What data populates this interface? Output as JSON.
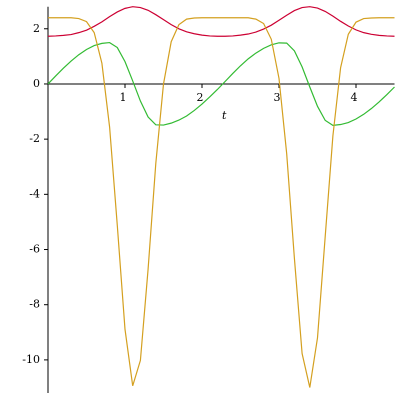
{
  "chart_data": {
    "type": "line",
    "x_label": "t",
    "x": [
      0,
      0.1,
      0.2,
      0.3,
      0.4,
      0.5,
      0.6,
      0.7,
      0.8,
      0.9,
      1.0,
      1.1,
      1.2,
      1.3,
      1.4,
      1.5,
      1.6,
      1.7,
      1.8,
      1.9,
      2.0,
      2.1,
      2.2,
      2.3,
      2.4,
      2.5,
      2.6,
      2.7,
      2.8,
      2.9,
      3.0,
      3.1,
      3.2,
      3.3,
      3.4,
      3.5,
      3.6,
      3.7,
      3.8,
      3.9,
      4.0,
      4.1,
      4.2,
      4.3,
      4.4,
      4.5
    ],
    "series": [
      {
        "color": "#cc0033",
        "values": [
          1.73,
          1.74,
          1.76,
          1.79,
          1.86,
          1.95,
          2.09,
          2.25,
          2.44,
          2.61,
          2.74,
          2.8,
          2.77,
          2.67,
          2.51,
          2.33,
          2.15,
          2.0,
          1.89,
          1.82,
          1.77,
          1.74,
          1.73,
          1.73,
          1.74,
          1.77,
          1.81,
          1.88,
          1.99,
          2.13,
          2.31,
          2.49,
          2.66,
          2.77,
          2.8,
          2.75,
          2.63,
          2.46,
          2.27,
          2.1,
          1.96,
          1.86,
          1.8,
          1.76,
          1.74,
          1.73
        ]
      },
      {
        "color": "#33bb33",
        "values": [
          0,
          0.29,
          0.57,
          0.83,
          1.06,
          1.25,
          1.39,
          1.47,
          1.5,
          1.32,
          0.81,
          0.11,
          -0.62,
          -1.2,
          -1.48,
          -1.49,
          -1.42,
          -1.31,
          -1.16,
          -0.96,
          -0.73,
          -0.47,
          -0.2,
          0.09,
          0.38,
          0.66,
          0.91,
          1.12,
          1.29,
          1.42,
          1.49,
          1.48,
          1.2,
          0.62,
          -0.11,
          -0.81,
          -1.32,
          -1.5,
          -1.47,
          -1.4,
          -1.27,
          -1.1,
          -0.89,
          -0.65,
          -0.39,
          -0.11
        ]
      },
      {
        "color": "#d4a020",
        "values": [
          2.4,
          2.4,
          2.4,
          2.4,
          2.37,
          2.26,
          1.86,
          0.75,
          -1.56,
          -5.13,
          -8.89,
          -10.94,
          -10.02,
          -6.71,
          -2.88,
          0.0,
          1.53,
          2.15,
          2.35,
          2.39,
          2.4,
          2.4,
          2.4,
          2.4,
          2.4,
          2.4,
          2.4,
          2.35,
          2.19,
          1.62,
          0.2,
          -2.53,
          -6.32,
          -9.77,
          -11.0,
          -9.2,
          -5.53,
          -1.88,
          0.59,
          1.8,
          2.24,
          2.37,
          2.39,
          2.4,
          2.4,
          2.4
        ]
      }
    ],
    "xlim": [
      0,
      4.5
    ],
    "ylim": [
      -11.2,
      2.8
    ],
    "xticks": [
      1,
      2,
      3,
      4
    ],
    "yticks": [
      -10,
      -8,
      -6,
      -4,
      -2,
      0,
      2
    ]
  }
}
